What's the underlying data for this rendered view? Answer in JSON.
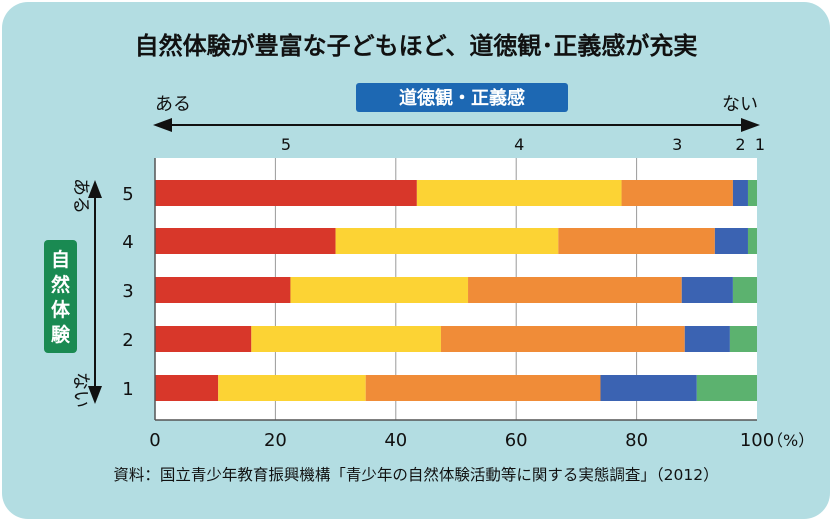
{
  "title": "自然体験が豊富な子どもほど、道徳観･正義感が充実",
  "top_axis": {
    "label": "道徳観・正義感",
    "left_end": "ある",
    "right_end": "ない",
    "segment_labels": [
      "5",
      "4",
      "3",
      "2",
      "1"
    ]
  },
  "side_axis": {
    "label": [
      "自",
      "然",
      "体",
      "験"
    ],
    "top_end": "ある",
    "bottom_end": "ない"
  },
  "source": "資料：国立青少年教育振興機構「青少年の自然体験活動等に関する実態調査」（2012）",
  "colors": {
    "background": "#b3dde2",
    "seg5": "#d8372a",
    "seg4": "#fcd334",
    "seg3": "#f08c38",
    "seg2": "#3b63b2",
    "seg1": "#5cb26f",
    "badge_blue": "#1d68b3",
    "badge_green": "#1a8a52"
  },
  "chart_data": {
    "type": "bar",
    "orientation": "horizontal",
    "stacked": true,
    "categories": [
      "5",
      "4",
      "3",
      "2",
      "1"
    ],
    "series": [
      {
        "name": "5",
        "values": [
          43.5,
          30.0,
          22.5,
          16.0,
          10.5
        ]
      },
      {
        "name": "4",
        "values": [
          34.0,
          37.0,
          29.5,
          31.5,
          24.5
        ]
      },
      {
        "name": "3",
        "values": [
          18.5,
          26.0,
          35.5,
          40.5,
          39.0
        ]
      },
      {
        "name": "2",
        "values": [
          2.5,
          5.5,
          8.5,
          7.5,
          16.0
        ]
      },
      {
        "name": "1",
        "values": [
          1.5,
          1.5,
          4.0,
          4.5,
          10.0
        ]
      }
    ],
    "xlim": [
      0,
      100
    ],
    "xticks": [
      "0",
      "20",
      "40",
      "60",
      "80",
      "100"
    ],
    "xunit": "（%）",
    "grid": true
  }
}
